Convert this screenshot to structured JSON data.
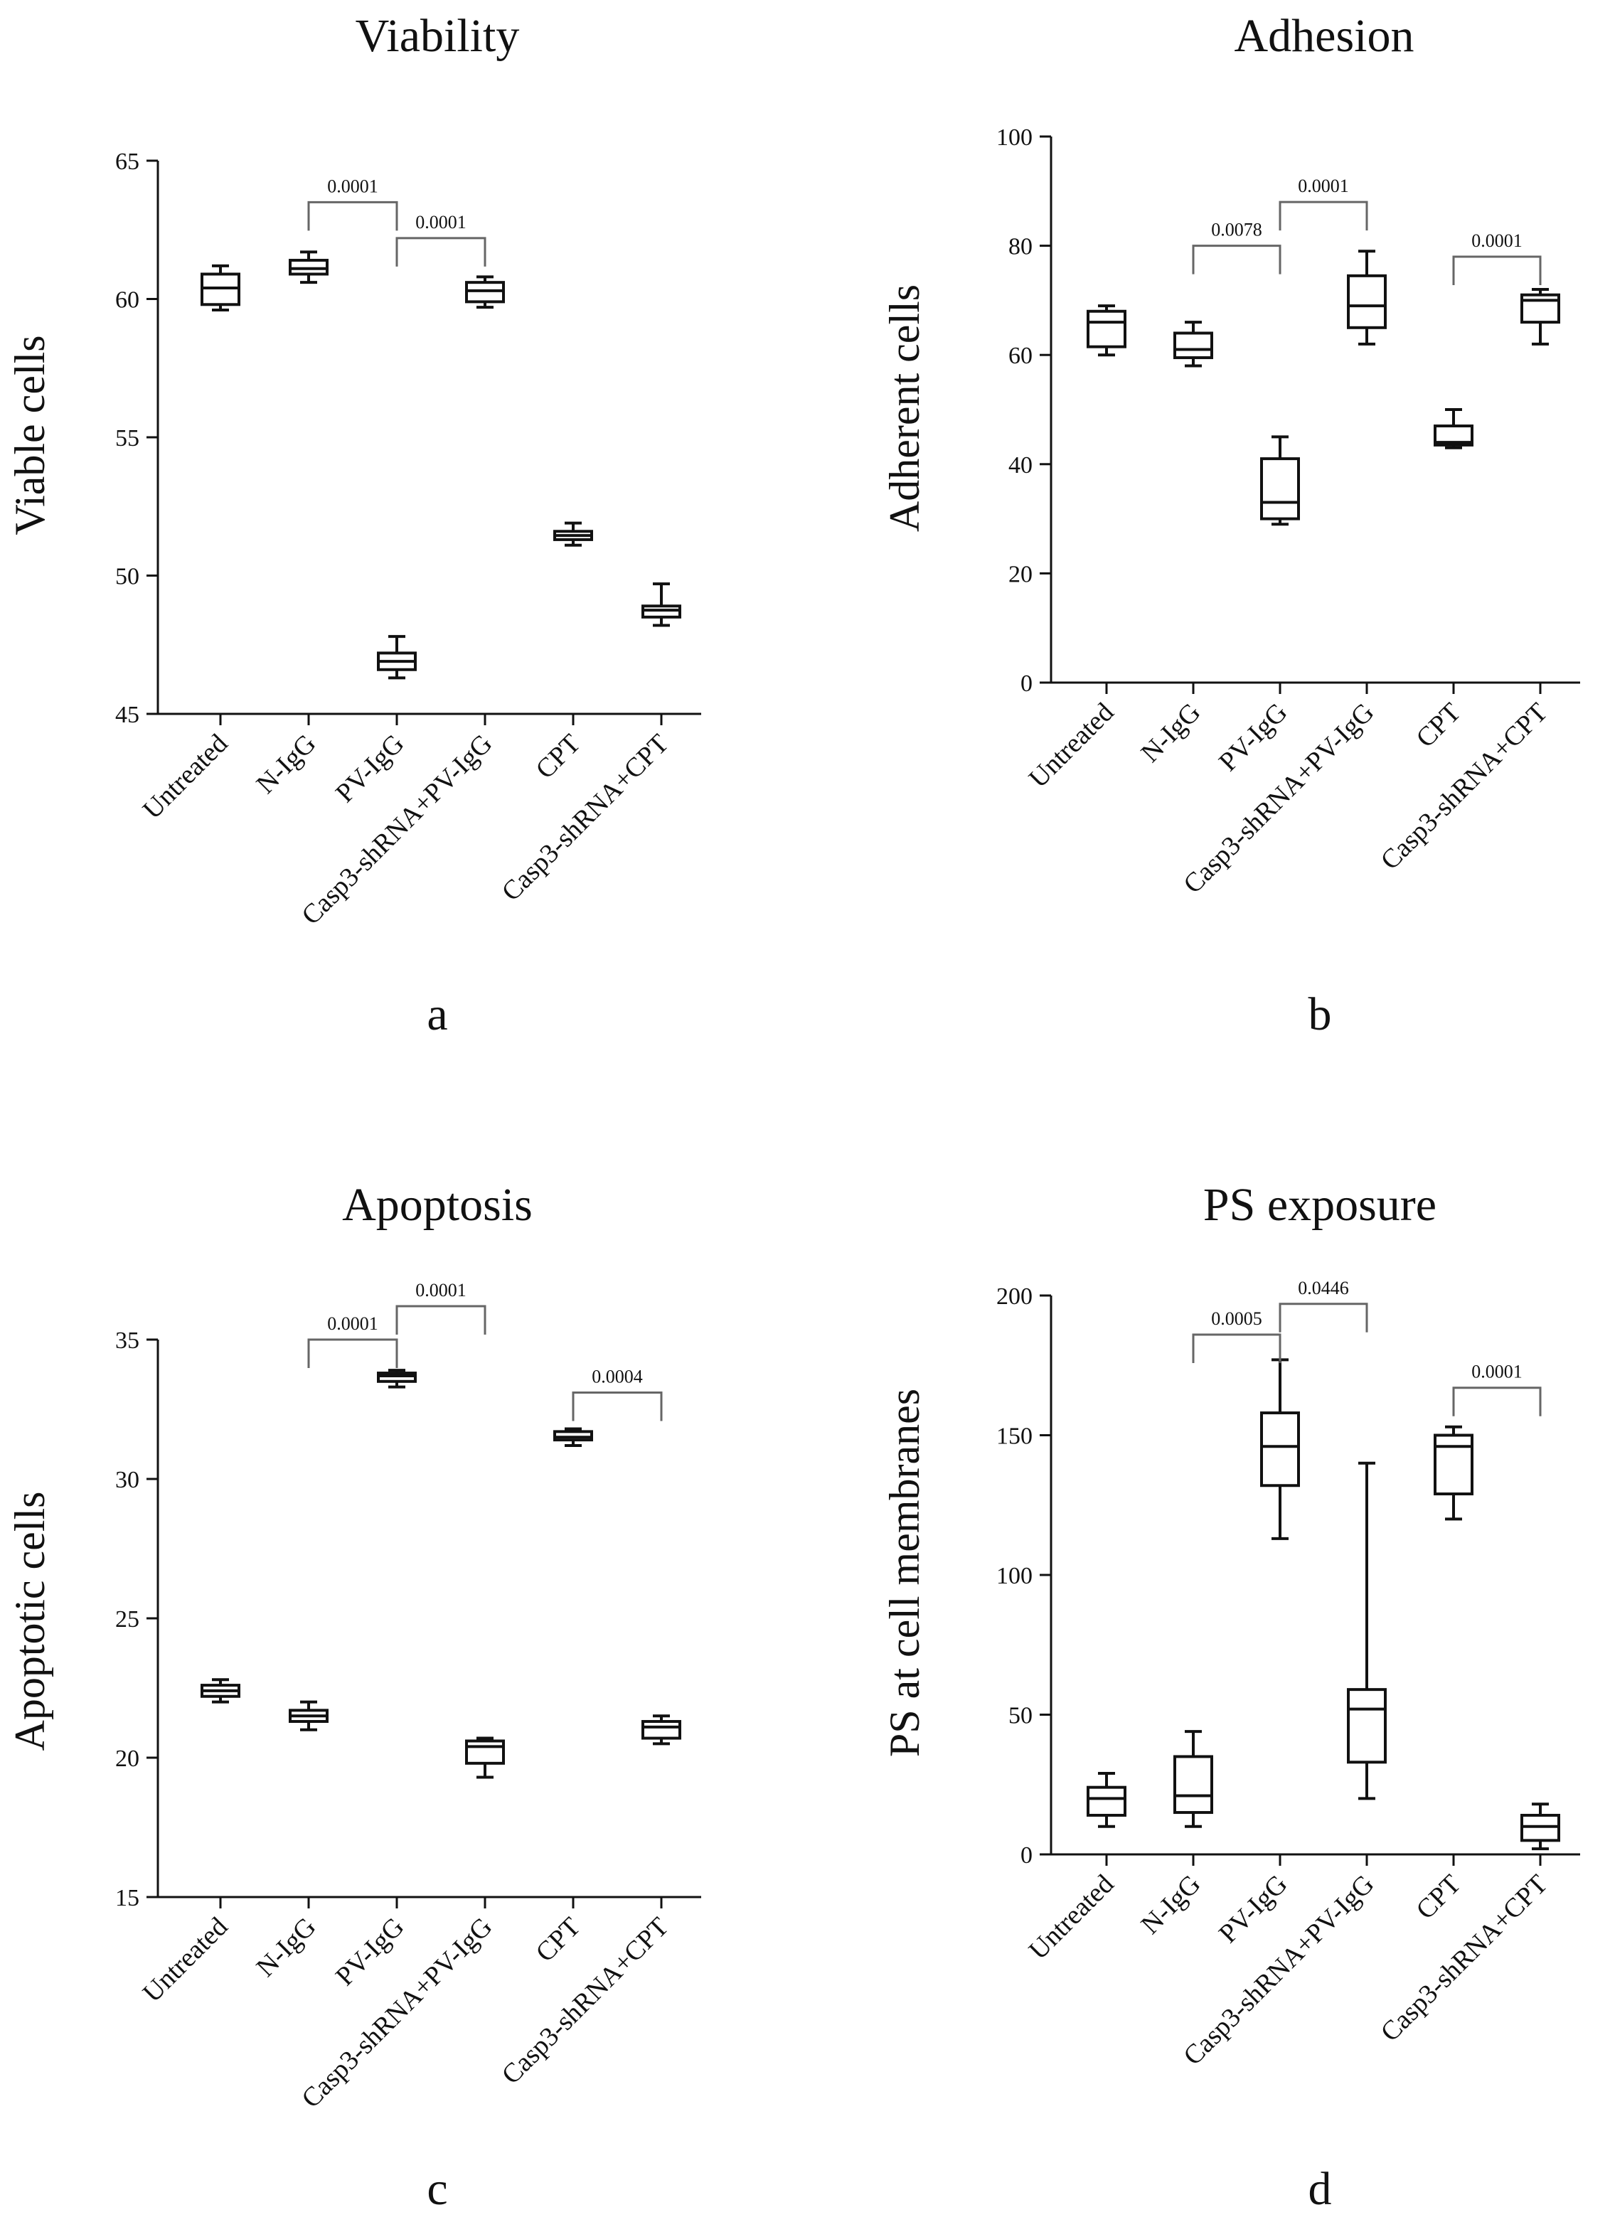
{
  "chart_data": [
    {
      "type": "box",
      "title": "Viability",
      "ylabel": "Viable cells",
      "panel_label": "a",
      "ylim": [
        45,
        65
      ],
      "yticks": [
        45,
        50,
        55,
        60,
        65
      ],
      "categories": [
        "Untreated",
        "N-IgG",
        "PV-IgG",
        "Casp3-shRNA+PV-IgG",
        "CPT",
        "Casp3-shRNA+CPT"
      ],
      "boxes": [
        {
          "min": 59.6,
          "q1": 59.8,
          "median": 60.4,
          "q3": 60.9,
          "max": 61.2
        },
        {
          "min": 60.6,
          "q1": 60.9,
          "median": 61.1,
          "q3": 61.4,
          "max": 61.7
        },
        {
          "min": 46.3,
          "q1": 46.6,
          "median": 46.9,
          "q3": 47.2,
          "max": 47.8
        },
        {
          "min": 59.7,
          "q1": 59.9,
          "median": 60.3,
          "q3": 60.6,
          "max": 60.8
        },
        {
          "min": 51.1,
          "q1": 51.3,
          "median": 51.45,
          "q3": 51.6,
          "max": 51.9
        },
        {
          "min": 48.2,
          "q1": 48.5,
          "median": 48.75,
          "q3": 48.9,
          "max": 49.7
        }
      ],
      "comparisons": [
        {
          "from": 1,
          "to": 2,
          "label": "0.0001",
          "level": 63.5
        },
        {
          "from": 2,
          "to": 3,
          "label": "0.0001",
          "level": 62.2
        }
      ]
    },
    {
      "type": "box",
      "title": "Adhesion",
      "ylabel": "Adherent cells",
      "panel_label": "b",
      "ylim": [
        0,
        100
      ],
      "yticks": [
        0,
        20,
        40,
        60,
        80,
        100
      ],
      "categories": [
        "Untreated",
        "N-IgG",
        "PV-IgG",
        "Casp3-shRNA+PV-IgG",
        "CPT",
        "Casp3-shRNA+CPT"
      ],
      "boxes": [
        {
          "min": 60.0,
          "q1": 61.5,
          "median": 66.0,
          "q3": 68.0,
          "max": 69.0
        },
        {
          "min": 58.0,
          "q1": 59.5,
          "median": 61.0,
          "q3": 64.0,
          "max": 66.0
        },
        {
          "min": 29.0,
          "q1": 30.0,
          "median": 33.0,
          "q3": 41.0,
          "max": 45.0
        },
        {
          "min": 62.0,
          "q1": 65.0,
          "median": 69.0,
          "q3": 74.5,
          "max": 79.0
        },
        {
          "min": 43.0,
          "q1": 43.5,
          "median": 44.0,
          "q3": 47.0,
          "max": 50.0
        },
        {
          "min": 62.0,
          "q1": 66.0,
          "median": 70.0,
          "q3": 71.0,
          "max": 72.0
        }
      ],
      "comparisons": [
        {
          "from": 1,
          "to": 2,
          "label": "0.0078",
          "level": 80.0
        },
        {
          "from": 2,
          "to": 3,
          "label": "0.0001",
          "level": 88.0
        },
        {
          "from": 4,
          "to": 5,
          "label": "0.0001",
          "level": 78.0
        }
      ]
    },
    {
      "type": "box",
      "title": "Apoptosis",
      "ylabel": "Apoptotic cells",
      "panel_label": "c",
      "ylim": [
        15,
        35
      ],
      "yticks": [
        15,
        20,
        25,
        30,
        35
      ],
      "categories": [
        "Untreated",
        "N-IgG",
        "PV-IgG",
        "Casp3-shRNA+PV-IgG",
        "CPT",
        "Casp3-shRNA+CPT"
      ],
      "boxes": [
        {
          "min": 22.0,
          "q1": 22.2,
          "median": 22.4,
          "q3": 22.6,
          "max": 22.8
        },
        {
          "min": 21.0,
          "q1": 21.3,
          "median": 21.5,
          "q3": 21.7,
          "max": 22.0
        },
        {
          "min": 33.3,
          "q1": 33.5,
          "median": 33.7,
          "q3": 33.8,
          "max": 33.9
        },
        {
          "min": 19.3,
          "q1": 19.8,
          "median": 20.4,
          "q3": 20.6,
          "max": 20.7
        },
        {
          "min": 31.2,
          "q1": 31.4,
          "median": 31.5,
          "q3": 31.7,
          "max": 31.8
        },
        {
          "min": 20.5,
          "q1": 20.7,
          "median": 21.1,
          "q3": 21.3,
          "max": 21.5
        }
      ],
      "comparisons": [
        {
          "from": 1,
          "to": 2,
          "label": "0.0001",
          "level": 35.0
        },
        {
          "from": 2,
          "to": 3,
          "label": "0.0001",
          "level": 36.2
        },
        {
          "from": 4,
          "to": 5,
          "label": "0.0004",
          "level": 33.1
        }
      ]
    },
    {
      "type": "box",
      "title": "PS exposure",
      "ylabel": "PS at cell membranes",
      "panel_label": "d",
      "ylim": [
        0,
        200
      ],
      "yticks": [
        0,
        50,
        100,
        150,
        200
      ],
      "categories": [
        "Untreated",
        "N-IgG",
        "PV-IgG",
        "Casp3-shRNA+PV-IgG",
        "CPT",
        "Casp3-shRNA+CPT"
      ],
      "boxes": [
        {
          "min": 10.0,
          "q1": 14.0,
          "median": 20.0,
          "q3": 24.0,
          "max": 29.0
        },
        {
          "min": 10.0,
          "q1": 15.0,
          "median": 21.0,
          "q3": 35.0,
          "max": 44.0
        },
        {
          "min": 113.0,
          "q1": 132.0,
          "median": 146.0,
          "q3": 158.0,
          "max": 177.0
        },
        {
          "min": 20.0,
          "q1": 33.0,
          "median": 52.0,
          "q3": 59.0,
          "max": 140.0
        },
        {
          "min": 120.0,
          "q1": 129.0,
          "median": 146.0,
          "q3": 150.0,
          "max": 153.0
        },
        {
          "min": 2.0,
          "q1": 5.0,
          "median": 10.0,
          "q3": 14.0,
          "max": 18.0
        }
      ],
      "comparisons": [
        {
          "from": 1,
          "to": 2,
          "label": "0.0005",
          "level": 186.0
        },
        {
          "from": 2,
          "to": 3,
          "label": "0.0446",
          "level": 197.0
        },
        {
          "from": 4,
          "to": 5,
          "label": "0.0001",
          "level": 167.0
        }
      ]
    }
  ]
}
